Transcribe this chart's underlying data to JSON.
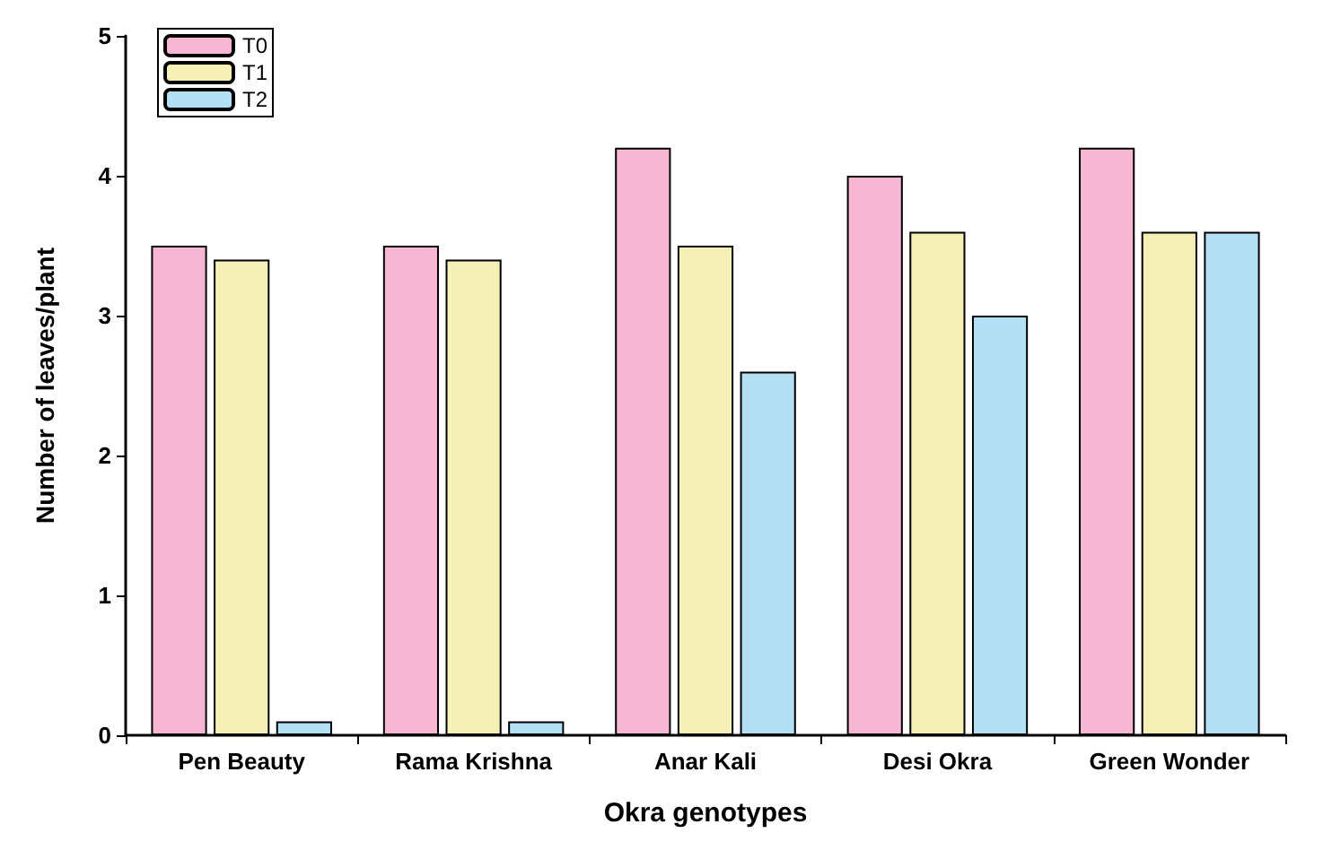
{
  "chart_data": {
    "type": "bar",
    "xlabel": "Okra genotypes",
    "ylabel": "Number of leaves/plant",
    "categories": [
      "Pen Beauty",
      "Rama Krishna",
      "Anar Kali",
      "Desi Okra",
      "Green Wonder"
    ],
    "series": [
      {
        "name": "T0",
        "color": "#f7b6d2",
        "values": [
          3.5,
          3.5,
          4.2,
          4.0,
          4.2
        ]
      },
      {
        "name": "T1",
        "color": "#f5f0b5",
        "values": [
          3.4,
          3.4,
          3.5,
          3.6,
          3.6
        ]
      },
      {
        "name": "T2",
        "color": "#b3e0f5",
        "values": [
          0.1,
          0.1,
          2.6,
          3.0,
          3.6
        ]
      }
    ],
    "ylim": [
      0,
      5
    ],
    "yticks": [
      0,
      1,
      2,
      3,
      4,
      5
    ],
    "grid": false,
    "legend": "top left"
  }
}
